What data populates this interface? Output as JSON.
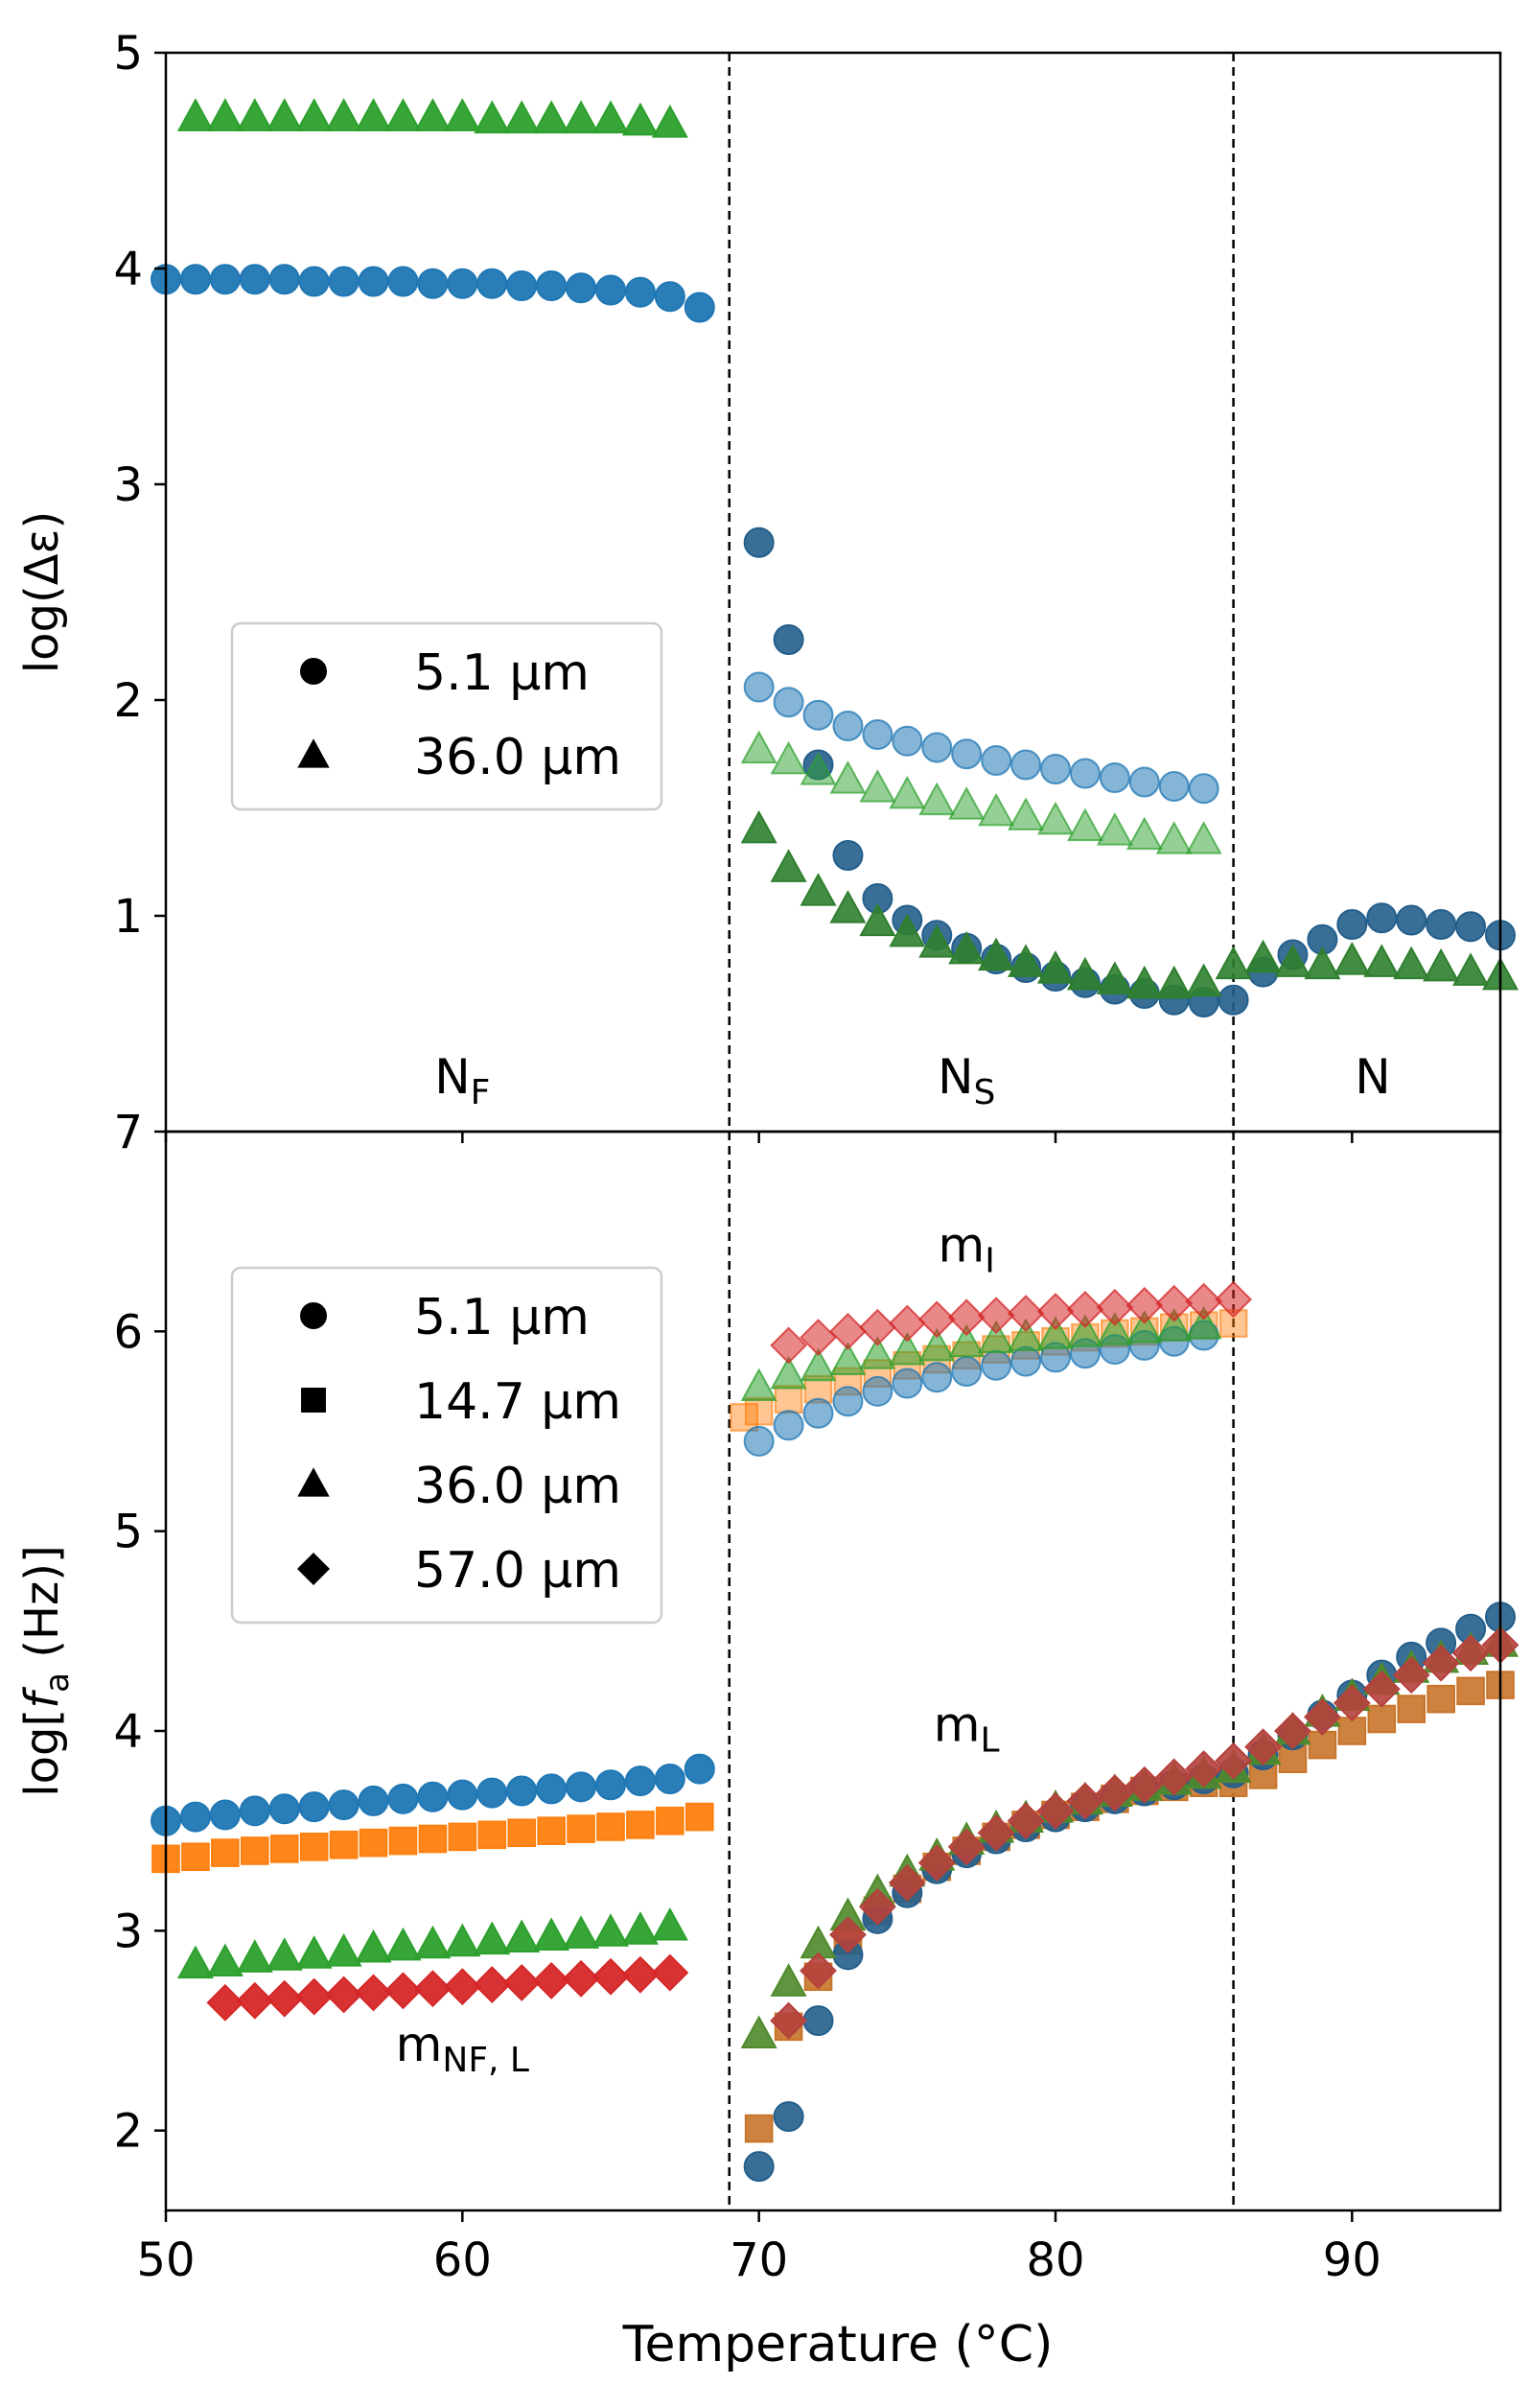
{
  "chart_data": [
    {
      "type": "scatter",
      "panel": "top",
      "ylabel": "log(Δε)",
      "xlim": [
        50,
        95
      ],
      "ylim": [
        0,
        5
      ],
      "yticks": [
        1,
        2,
        3,
        4,
        5
      ],
      "phase_boundaries": [
        69,
        86
      ],
      "phase_labels": [
        {
          "main": "N",
          "sub": "F",
          "x": 60
        },
        {
          "main": "N",
          "sub": "S",
          "x": 77
        },
        {
          "main": "N",
          "sub": "",
          "x": 90.7
        }
      ],
      "legend": {
        "position": "center-left",
        "entries": [
          {
            "marker": "circle",
            "label": "5.1 μm"
          },
          {
            "marker": "triangle",
            "label": "36.0 μm"
          }
        ]
      },
      "series": [
        {
          "name": "5.1 μm (N_F)",
          "marker": "circle",
          "color": "#1f77b4",
          "alpha": 0.95,
          "x": [
            50,
            51,
            52,
            53,
            54,
            55,
            56,
            57,
            58,
            59,
            60,
            61,
            62,
            63,
            64,
            65,
            66,
            67,
            68
          ],
          "y": [
            3.95,
            3.95,
            3.95,
            3.95,
            3.95,
            3.94,
            3.94,
            3.94,
            3.94,
            3.93,
            3.93,
            3.93,
            3.92,
            3.92,
            3.91,
            3.9,
            3.89,
            3.87,
            3.82
          ]
        },
        {
          "name": "36.0 μm (N_F)",
          "marker": "triangle",
          "color": "#2ca02c",
          "alpha": 0.95,
          "x": [
            51,
            52,
            53,
            54,
            55,
            56,
            57,
            58,
            59,
            60,
            61,
            62,
            63,
            64,
            65,
            66,
            67
          ],
          "y": [
            4.7,
            4.7,
            4.7,
            4.7,
            4.7,
            4.7,
            4.7,
            4.7,
            4.7,
            4.7,
            4.69,
            4.69,
            4.69,
            4.69,
            4.69,
            4.68,
            4.67
          ]
        },
        {
          "name": "5.1 μm (lower mode)",
          "marker": "circle",
          "color": "#245f8c",
          "alpha": 0.9,
          "x": [
            70,
            71,
            72,
            73,
            74,
            75,
            76,
            77,
            78,
            79,
            80,
            81,
            82,
            83,
            84,
            85,
            86,
            87,
            88,
            89,
            90,
            91,
            92,
            93,
            94,
            95
          ],
          "y": [
            2.73,
            2.28,
            1.7,
            1.28,
            1.08,
            0.98,
            0.91,
            0.85,
            0.8,
            0.76,
            0.72,
            0.69,
            0.66,
            0.64,
            0.61,
            0.6,
            0.61,
            0.74,
            0.82,
            0.89,
            0.96,
            0.99,
            0.98,
            0.96,
            0.95,
            0.91
          ]
        },
        {
          "name": "36.0 μm (lower mode)",
          "marker": "triangle",
          "color": "#2f7f2f",
          "alpha": 0.9,
          "x": [
            70,
            71,
            72,
            73,
            74,
            75,
            76,
            77,
            78,
            79,
            80,
            81,
            82,
            83,
            84,
            85,
            86,
            87,
            88,
            89,
            90,
            91,
            92,
            93,
            94,
            95
          ],
          "y": [
            1.4,
            1.22,
            1.11,
            1.03,
            0.97,
            0.92,
            0.87,
            0.84,
            0.81,
            0.78,
            0.75,
            0.72,
            0.7,
            0.68,
            0.68,
            0.69,
            0.77,
            0.8,
            0.78,
            0.77,
            0.79,
            0.78,
            0.77,
            0.76,
            0.74,
            0.72
          ]
        },
        {
          "name": "5.1 μm (upper mode)",
          "marker": "circle",
          "color": "#1f77b4",
          "alpha": 0.55,
          "x": [
            70,
            71,
            72,
            73,
            74,
            75,
            76,
            77,
            78,
            79,
            80,
            81,
            82,
            83,
            84,
            85
          ],
          "y": [
            2.06,
            1.99,
            1.93,
            1.88,
            1.84,
            1.81,
            1.78,
            1.75,
            1.72,
            1.7,
            1.68,
            1.66,
            1.64,
            1.62,
            1.6,
            1.59
          ]
        },
        {
          "name": "36.0 μm (upper mode)",
          "marker": "triangle",
          "color": "#2ca02c",
          "alpha": 0.5,
          "x": [
            70,
            71,
            72,
            73,
            74,
            75,
            76,
            77,
            78,
            79,
            80,
            81,
            82,
            83,
            84,
            85
          ],
          "y": [
            1.77,
            1.72,
            1.67,
            1.63,
            1.59,
            1.56,
            1.53,
            1.51,
            1.48,
            1.46,
            1.44,
            1.41,
            1.39,
            1.37,
            1.35,
            1.35
          ]
        }
      ]
    },
    {
      "type": "scatter",
      "panel": "bottom",
      "ylabel_main": "log[",
      "ylabel_var": "f",
      "ylabel_sub": "a",
      "ylabel_rest": " (Hz)]",
      "xlabel": "Temperature (°C)",
      "xlim": [
        50,
        95
      ],
      "ylim": [
        1.6,
        7
      ],
      "yticks": [
        2,
        3,
        4,
        5,
        6,
        7
      ],
      "xticks": [
        50,
        60,
        70,
        80,
        90
      ],
      "phase_boundaries": [
        69,
        86
      ],
      "annotations": [
        {
          "main": "m",
          "sub": "I",
          "x": 77,
          "y": 6.35
        },
        {
          "main": "m",
          "sub": "L",
          "x": 77,
          "y": 3.95
        },
        {
          "main": "m",
          "sub": "NF, L",
          "x": 60,
          "y": 2.35
        }
      ],
      "legend": {
        "position": "upper-left",
        "entries": [
          {
            "marker": "circle",
            "label": "5.1 μm"
          },
          {
            "marker": "square",
            "label": "14.7 μm"
          },
          {
            "marker": "triangle",
            "label": "36.0 μm"
          },
          {
            "marker": "diamond",
            "label": "57.0 μm"
          }
        ]
      },
      "series": [
        {
          "name": "5.1 μm (m_NF,L)",
          "marker": "circle",
          "color": "#1f77b4",
          "alpha": 0.95,
          "x": [
            50,
            51,
            52,
            53,
            54,
            55,
            56,
            57,
            58,
            59,
            60,
            61,
            62,
            63,
            64,
            65,
            66,
            67,
            68
          ],
          "y": [
            3.55,
            3.57,
            3.58,
            3.6,
            3.61,
            3.62,
            3.63,
            3.65,
            3.66,
            3.67,
            3.68,
            3.69,
            3.7,
            3.71,
            3.72,
            3.73,
            3.75,
            3.76,
            3.81
          ]
        },
        {
          "name": "14.7 μm (m_NF,L)",
          "marker": "square",
          "color": "#ff7f0e",
          "alpha": 0.95,
          "x": [
            50,
            51,
            52,
            53,
            54,
            55,
            56,
            57,
            58,
            59,
            60,
            61,
            62,
            63,
            64,
            65,
            66,
            67,
            68
          ],
          "y": [
            3.36,
            3.37,
            3.39,
            3.4,
            3.41,
            3.42,
            3.43,
            3.44,
            3.45,
            3.46,
            3.47,
            3.48,
            3.49,
            3.5,
            3.51,
            3.52,
            3.53,
            3.55,
            3.57
          ]
        },
        {
          "name": "36.0 μm (m_NF,L)",
          "marker": "triangle",
          "color": "#2ca02c",
          "alpha": 0.95,
          "x": [
            51,
            52,
            53,
            54,
            55,
            56,
            57,
            58,
            59,
            60,
            61,
            62,
            63,
            64,
            65,
            66,
            67
          ],
          "y": [
            2.83,
            2.84,
            2.86,
            2.87,
            2.88,
            2.89,
            2.91,
            2.92,
            2.93,
            2.94,
            2.95,
            2.96,
            2.97,
            2.98,
            2.99,
            3.0,
            3.02
          ]
        },
        {
          "name": "57.0 μm (m_NF,L)",
          "marker": "diamond",
          "color": "#d62728",
          "alpha": 0.95,
          "x": [
            52,
            53,
            54,
            55,
            56,
            57,
            58,
            59,
            60,
            61,
            62,
            63,
            64,
            65,
            66,
            67
          ],
          "y": [
            2.64,
            2.65,
            2.66,
            2.67,
            2.68,
            2.69,
            2.7,
            2.71,
            2.72,
            2.73,
            2.74,
            2.75,
            2.76,
            2.77,
            2.78,
            2.79
          ]
        },
        {
          "name": "14.7 μm (m_L)",
          "marker": "square",
          "color": "#c8742a",
          "alpha": 0.9,
          "x": [
            70,
            71,
            72,
            73,
            74,
            75,
            76,
            77,
            78,
            79,
            80,
            81,
            82,
            83,
            84,
            85,
            86,
            87,
            88,
            89,
            90,
            91,
            92,
            93,
            94,
            95
          ],
          "y": [
            2.01,
            2.52,
            2.77,
            2.95,
            3.1,
            3.21,
            3.32,
            3.4,
            3.47,
            3.53,
            3.58,
            3.62,
            3.66,
            3.7,
            3.72,
            3.74,
            3.74,
            3.78,
            3.86,
            3.93,
            4.0,
            4.06,
            4.11,
            4.16,
            4.2,
            4.23
          ]
        },
        {
          "name": "5.1 μm (m_L)",
          "marker": "circle",
          "color": "#245f8c",
          "alpha": 0.9,
          "x": [
            70,
            71,
            72,
            73,
            74,
            75,
            76,
            77,
            78,
            79,
            80,
            81,
            82,
            83,
            84,
            85,
            86,
            87,
            88,
            89,
            90,
            91,
            92,
            93,
            94,
            95
          ],
          "y": [
            1.82,
            2.07,
            2.55,
            2.88,
            3.06,
            3.19,
            3.31,
            3.39,
            3.46,
            3.52,
            3.57,
            3.62,
            3.66,
            3.7,
            3.73,
            3.76,
            3.79,
            3.88,
            3.98,
            4.08,
            4.18,
            4.28,
            4.37,
            4.44,
            4.51,
            4.57
          ]
        },
        {
          "name": "36.0 μm (m_L)",
          "marker": "triangle",
          "color": "#4f8a2b",
          "alpha": 0.9,
          "x": [
            70,
            71,
            72,
            73,
            74,
            75,
            76,
            77,
            78,
            79,
            80,
            81,
            82,
            83,
            84,
            85,
            86,
            87,
            88,
            89,
            90,
            91,
            92,
            93,
            94,
            95
          ],
          "y": [
            2.48,
            2.74,
            2.93,
            3.07,
            3.19,
            3.29,
            3.37,
            3.45,
            3.51,
            3.56,
            3.61,
            3.65,
            3.69,
            3.72,
            3.75,
            3.78,
            3.81,
            3.9,
            4.0,
            4.09,
            4.17,
            4.25,
            4.31,
            4.36,
            4.4,
            4.44
          ]
        },
        {
          "name": "57.0 μm (m_L)",
          "marker": "diamond",
          "color": "#b5413c",
          "alpha": 0.9,
          "x": [
            71,
            72,
            73,
            74,
            75,
            76,
            77,
            78,
            79,
            80,
            81,
            82,
            83,
            84,
            85,
            86,
            87,
            88,
            89,
            90,
            91,
            92,
            93,
            94,
            95
          ],
          "y": [
            2.55,
            2.8,
            2.98,
            3.12,
            3.24,
            3.34,
            3.42,
            3.49,
            3.55,
            3.6,
            3.65,
            3.69,
            3.73,
            3.77,
            3.81,
            3.85,
            3.92,
            4.0,
            4.07,
            4.14,
            4.21,
            4.28,
            4.34,
            4.39,
            4.43
          ]
        },
        {
          "name": "14.7 μm (m_I)",
          "marker": "square",
          "color": "#ff7f0e",
          "alpha": 0.45,
          "x": [
            69.5,
            70,
            71,
            72,
            73,
            74,
            75,
            76,
            77,
            78,
            79,
            80,
            81,
            82,
            83,
            84,
            85,
            86
          ],
          "y": [
            5.57,
            5.6,
            5.66,
            5.71,
            5.75,
            5.79,
            5.83,
            5.86,
            5.88,
            5.91,
            5.93,
            5.95,
            5.97,
            5.99,
            6.0,
            6.02,
            6.03,
            6.04
          ]
        },
        {
          "name": "5.1 μm (m_I)",
          "marker": "circle",
          "color": "#1f77b4",
          "alpha": 0.55,
          "x": [
            70,
            71,
            72,
            73,
            74,
            75,
            76,
            77,
            78,
            79,
            80,
            81,
            82,
            83,
            84,
            85
          ],
          "y": [
            5.45,
            5.53,
            5.59,
            5.65,
            5.7,
            5.74,
            5.77,
            5.8,
            5.83,
            5.85,
            5.87,
            5.89,
            5.91,
            5.93,
            5.95,
            5.98
          ]
        },
        {
          "name": "36.0 μm (m_I)",
          "marker": "triangle",
          "color": "#2ca02c",
          "alpha": 0.55,
          "x": [
            70,
            71,
            72,
            73,
            74,
            75,
            76,
            77,
            78,
            79,
            80,
            81,
            82,
            83,
            84,
            85
          ],
          "y": [
            5.72,
            5.78,
            5.82,
            5.85,
            5.88,
            5.9,
            5.92,
            5.94,
            5.96,
            5.97,
            5.98,
            5.99,
            6.0,
            6.01,
            6.02,
            6.03
          ]
        },
        {
          "name": "57.0 μm (m_I)",
          "marker": "diamond",
          "color": "#d62728",
          "alpha": 0.55,
          "x": [
            71,
            72,
            73,
            74,
            75,
            76,
            77,
            78,
            79,
            80,
            81,
            82,
            83,
            84,
            85,
            86
          ],
          "y": [
            5.93,
            5.97,
            6.0,
            6.02,
            6.04,
            6.06,
            6.07,
            6.08,
            6.09,
            6.1,
            6.11,
            6.12,
            6.13,
            6.14,
            6.15,
            6.16
          ]
        }
      ]
    }
  ]
}
